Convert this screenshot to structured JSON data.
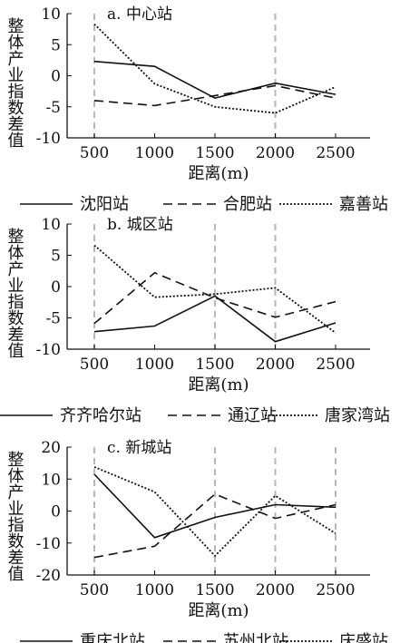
{
  "chart_data": [
    {
      "type": "line",
      "title": "a. 中心站",
      "xlabel": "距离(m)",
      "ylabel": "整体产业指数差值",
      "x": [
        500,
        1000,
        1500,
        2000,
        2500
      ],
      "xlim": [
        500,
        2500
      ],
      "ylim": [
        -10,
        10
      ],
      "yticks": [
        10,
        5,
        0,
        -5,
        -10
      ],
      "xticks": [
        500,
        1000,
        1500,
        2000,
        2500
      ],
      "grid_vertical": [
        500,
        2000
      ],
      "series": [
        {
          "name": "沈阳站",
          "values": [
            2.3,
            1.5,
            -3.6,
            -1.2,
            -3.0
          ]
        },
        {
          "name": "合肥站",
          "values": [
            -4.0,
            -4.8,
            -3.2,
            -1.6,
            -3.6
          ]
        },
        {
          "name": "嘉善站",
          "values": [
            8.3,
            -1.3,
            -5.0,
            -6.0,
            -1.8
          ]
        }
      ]
    },
    {
      "type": "line",
      "title": "b. 城区站",
      "xlabel": "距离(m)",
      "ylabel": "整体产业指数差值",
      "x": [
        500,
        1000,
        1500,
        2000,
        2500
      ],
      "xlim": [
        500,
        2500
      ],
      "ylim": [
        -10,
        10
      ],
      "yticks": [
        10,
        5,
        0,
        -5,
        -10
      ],
      "xticks": [
        500,
        1000,
        1500,
        2000,
        2500
      ],
      "grid_vertical": [
        500,
        1500,
        2000
      ],
      "series": [
        {
          "name": "齐齐哈尔站",
          "values": [
            -7.2,
            -6.3,
            -1.5,
            -8.8,
            -5.8
          ]
        },
        {
          "name": "通辽站",
          "values": [
            -5.9,
            2.2,
            -1.8,
            -4.9,
            -2.4
          ]
        },
        {
          "name": "唐家湾站",
          "values": [
            6.6,
            -1.7,
            -1.2,
            -0.2,
            -7.4
          ]
        }
      ]
    },
    {
      "type": "line",
      "title": "c. 新城站",
      "xlabel": "距离(m)",
      "ylabel": "整体产业指数差值",
      "x": [
        500,
        1000,
        1500,
        2000,
        2500
      ],
      "xlim": [
        500,
        2500
      ],
      "ylim": [
        -20,
        20
      ],
      "yticks": [
        20,
        10,
        0,
        -10,
        -20
      ],
      "xticks": [
        500,
        1000,
        1500,
        2000,
        2500
      ],
      "grid_vertical": [
        500,
        1500,
        2000,
        2500
      ],
      "series": [
        {
          "name": "重庆北站",
          "values": [
            11.5,
            -8.3,
            -2.0,
            2.0,
            1.2
          ]
        },
        {
          "name": "苏州北站",
          "values": [
            -14.5,
            -11.0,
            5.3,
            -2.3,
            2.0
          ]
        },
        {
          "name": "庆盛站",
          "values": [
            13.8,
            6.0,
            -14.0,
            4.8,
            -7.0
          ]
        }
      ]
    }
  ]
}
